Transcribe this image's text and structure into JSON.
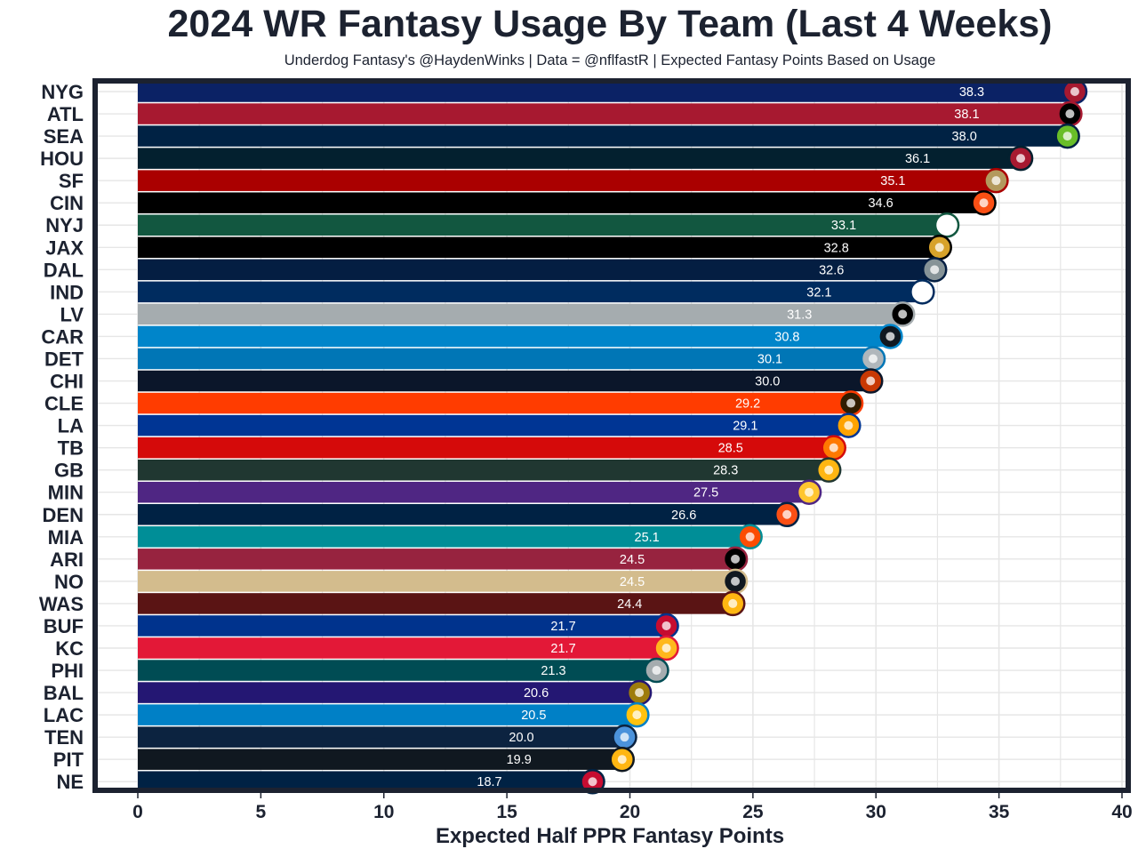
{
  "chart_data": {
    "type": "bar",
    "orientation": "horizontal",
    "title": "2024 WR Fantasy Usage By Team (Last 4 Weeks)",
    "subtitle": "Underdog Fantasy's @HaydenWinks | Data = @nflfastR | Expected Fantasy Points Based on Usage",
    "xlabel": "Expected Half PPR Fantasy Points",
    "ylabel": "",
    "xlim": [
      0,
      40
    ],
    "xticks": [
      0,
      5,
      10,
      15,
      20,
      25,
      30,
      35,
      40
    ],
    "grid": true,
    "categories": [
      "NYG",
      "ATL",
      "SEA",
      "HOU",
      "SF",
      "CIN",
      "NYJ",
      "JAX",
      "DAL",
      "IND",
      "LV",
      "CAR",
      "DET",
      "CHI",
      "CLE",
      "LA",
      "TB",
      "GB",
      "MIN",
      "DEN",
      "MIA",
      "ARI",
      "NO",
      "WAS",
      "BUF",
      "KC",
      "PHI",
      "BAL",
      "LAC",
      "TEN",
      "PIT",
      "NE"
    ],
    "values": [
      38.3,
      38.1,
      38.0,
      36.1,
      35.1,
      34.6,
      33.1,
      32.8,
      32.6,
      32.1,
      31.3,
      30.8,
      30.1,
      30.0,
      29.2,
      29.1,
      28.5,
      28.3,
      27.5,
      26.6,
      25.1,
      24.5,
      24.5,
      24.4,
      21.7,
      21.7,
      21.3,
      20.6,
      20.5,
      20.0,
      19.9,
      18.7
    ],
    "data_labels": [
      "38.3",
      "38.1",
      "38.0",
      "36.1",
      "35.1",
      "34.6",
      "33.1",
      "32.8",
      "32.6",
      "32.1",
      "31.3",
      "30.8",
      "30.1",
      "30.0",
      "29.2",
      "29.1",
      "28.5",
      "28.3",
      "27.5",
      "26.6",
      "25.1",
      "24.5",
      "24.5",
      "24.4",
      "21.7",
      "21.7",
      "21.3",
      "20.6",
      "20.5",
      "20.0",
      "19.9",
      "18.7"
    ],
    "bar_colors": [
      "#0b2265",
      "#a71930",
      "#002244",
      "#03202f",
      "#aa0000",
      "#000000",
      "#125740",
      "#000000",
      "#041e42",
      "#002c5f",
      "#a5acaf",
      "#0085ca",
      "#0076b6",
      "#0b162a",
      "#ff3c00",
      "#003594",
      "#d50a0a",
      "#203731",
      "#4f2683",
      "#002244",
      "#008e97",
      "#97233f",
      "#d3bc8d",
      "#5a1414",
      "#00338d",
      "#e31837",
      "#004c54",
      "#241773",
      "#0080c6",
      "#0c2340",
      "#101820",
      "#002244"
    ],
    "logo_colors": [
      "#a71930",
      "#000000",
      "#69be28",
      "#a71930",
      "#b3995d",
      "#fb4f14",
      "#ffffff",
      "#d7a22a",
      "#869397",
      "#ffffff",
      "#000000",
      "#101820",
      "#b0b7bc",
      "#c83803",
      "#311d00",
      "#ffa300",
      "#ff7900",
      "#ffb612",
      "#ffc62f",
      "#fb4f14",
      "#fc4c02",
      "#000000",
      "#101820",
      "#ffb612",
      "#c60c30",
      "#ffb81c",
      "#a5acaf",
      "#9e7c0c",
      "#ffc20e",
      "#4b92db",
      "#ffb612",
      "#c60c30"
    ]
  }
}
